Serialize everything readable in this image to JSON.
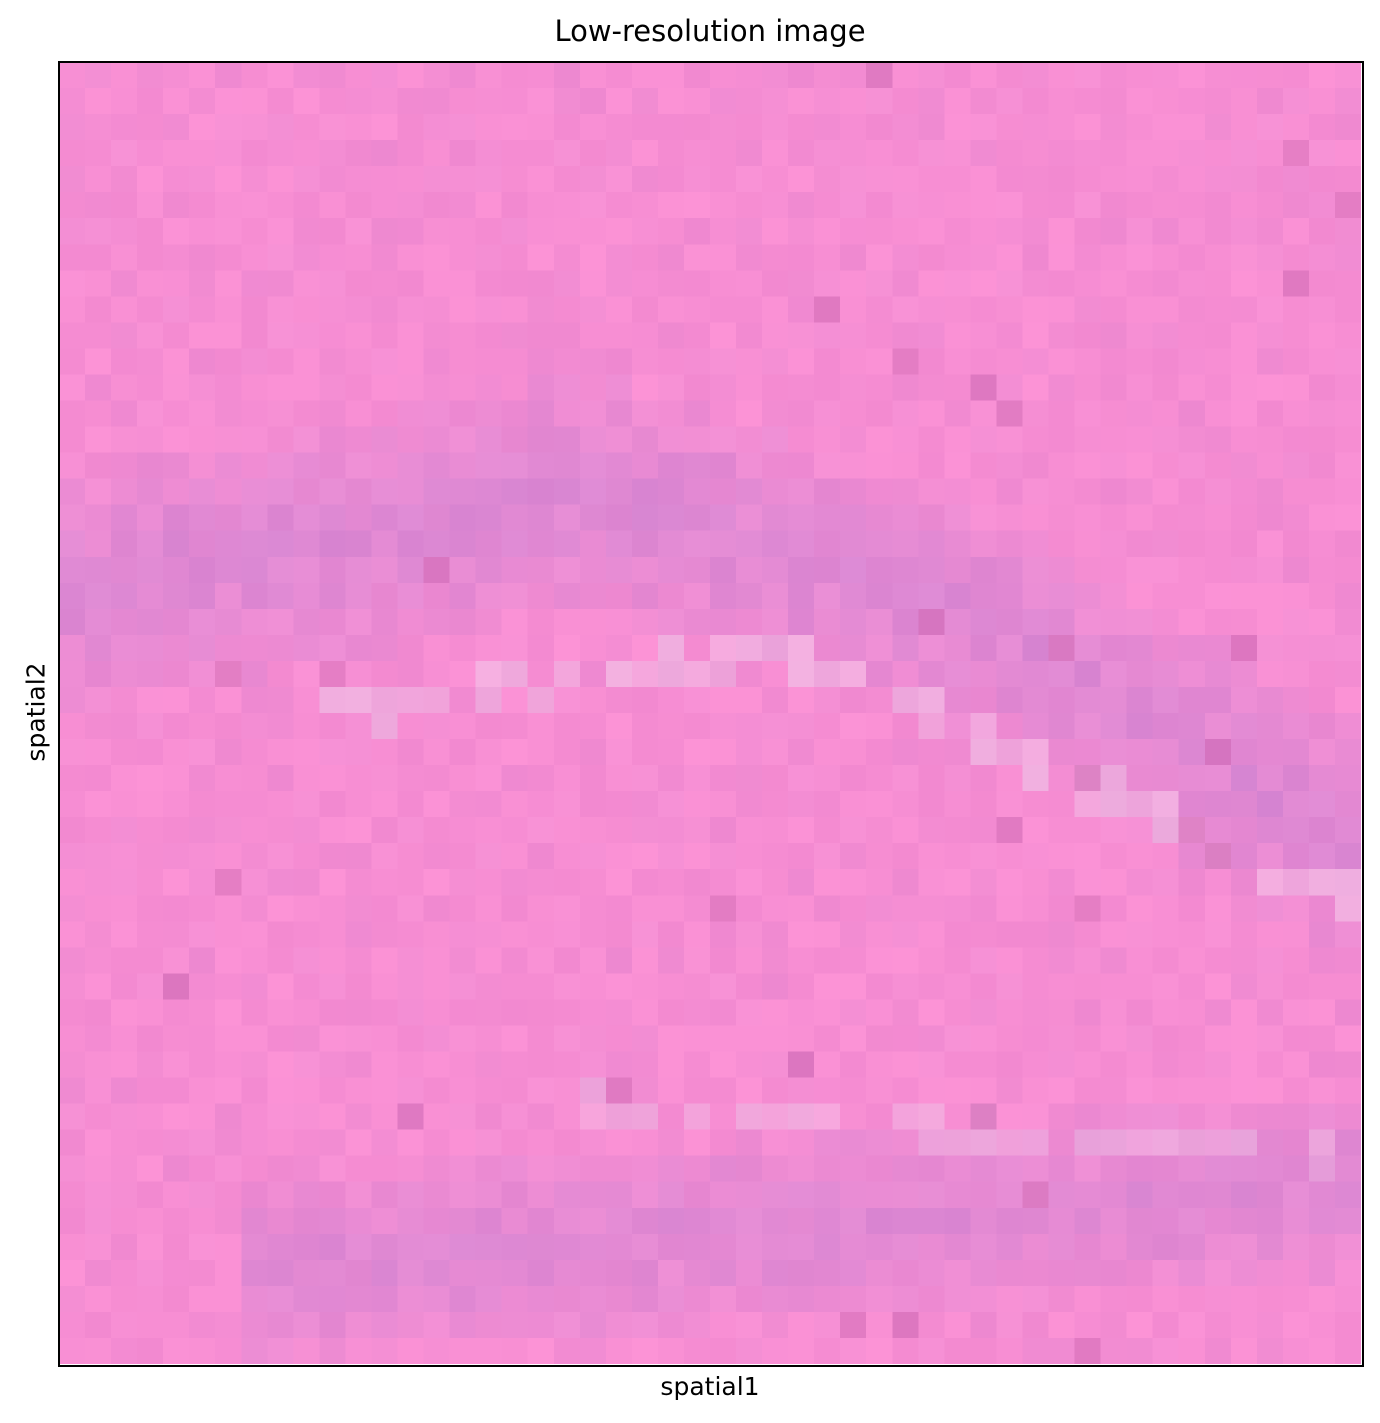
{
  "chart_data": {
    "type": "heatmap",
    "title": "Low-resolution image",
    "xlabel": "spatial1",
    "ylabel": "spatial2",
    "grid": false,
    "ticks_visible": false,
    "image_cells": [
      50,
      50
    ],
    "colors": {
      "pink_background": "#f78ed3",
      "purple_band": "#d887d3",
      "light_streak": "#f0b6e2",
      "dark_spot": "#d872bb"
    }
  }
}
